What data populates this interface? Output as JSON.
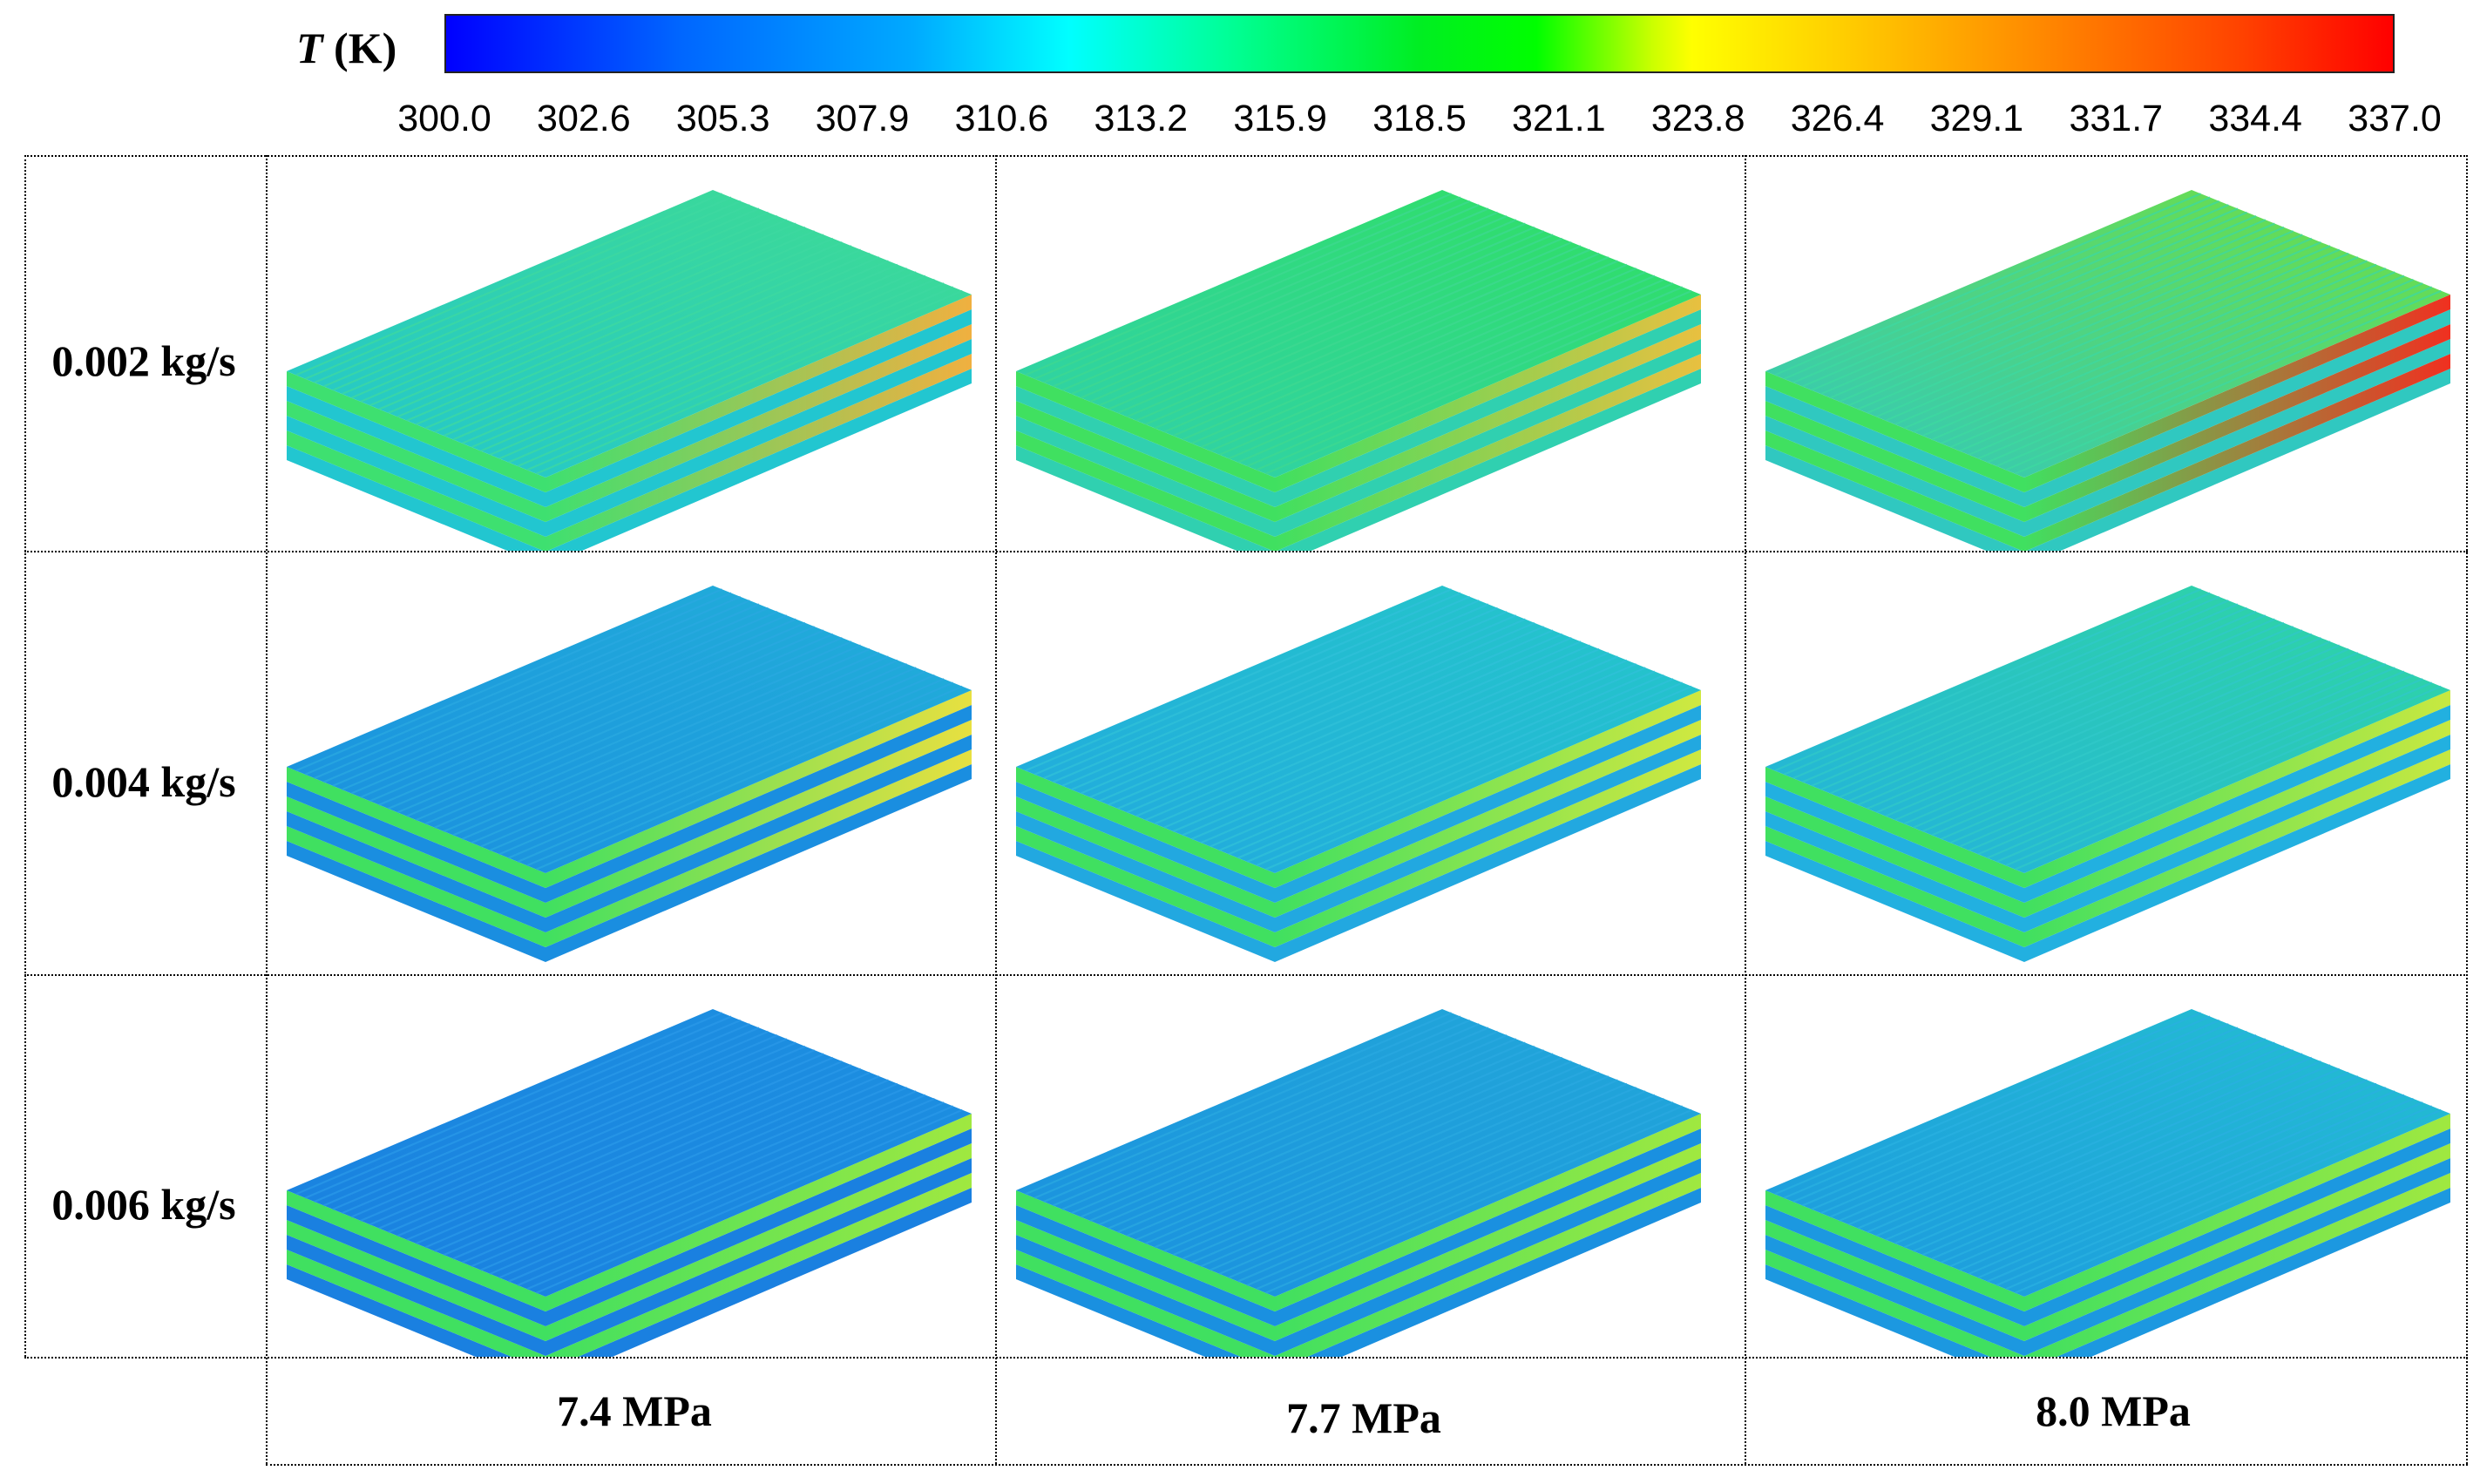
{
  "colorbar": {
    "title_symbol": "T",
    "title_unit": " (K)",
    "ticks": [
      "300.0",
      "302.6",
      "305.3",
      "307.9",
      "310.6",
      "313.2",
      "315.9",
      "318.5",
      "321.1",
      "323.8",
      "326.4",
      "329.1",
      "331.7",
      "334.4",
      "337.0"
    ],
    "colors": [
      "#0000ff",
      "#00aaff",
      "#00ffff",
      "#00ff00",
      "#ffff00",
      "#ff8800",
      "#ff0000"
    ]
  },
  "rows": [
    {
      "label": "0.002 kg/s"
    },
    {
      "label": "0.004 kg/s"
    },
    {
      "label": "0.006 kg/s"
    }
  ],
  "columns": [
    {
      "label": "7.4 MPa"
    },
    {
      "label": "7.7 MPa"
    },
    {
      "label": "8.0 MPa"
    }
  ],
  "panels": [
    {
      "top_color": "#22c6d0",
      "top_color_far": "#3fdc90",
      "stripe_color": "#3ed8a0",
      "layer_color": "#3ee070",
      "edge_hot": "#f0b040"
    },
    {
      "top_color": "#30d0b0",
      "top_color_far": "#30e060",
      "stripe_color": "#3ed890",
      "layer_color": "#40e060",
      "edge_hot": "#e8c040"
    },
    {
      "top_color": "#30c8c0",
      "top_color_far": "#70e040",
      "stripe_color": "#3ed8a0",
      "layer_color": "#40e060",
      "edge_hot": "#f03020"
    },
    {
      "top_color": "#1a8ee0",
      "top_color_far": "#22b0d8",
      "stripe_color": "#2aa8e0",
      "layer_color": "#40e060",
      "edge_hot": "#e8e040"
    },
    {
      "top_color": "#22a8e0",
      "top_color_far": "#24c8c8",
      "stripe_color": "#30c0d8",
      "layer_color": "#40e060",
      "edge_hot": "#d0e840"
    },
    {
      "top_color": "#22b0e0",
      "top_color_far": "#30d8a0",
      "stripe_color": "#30c8c8",
      "layer_color": "#40e060",
      "edge_hot": "#c8e840"
    },
    {
      "top_color": "#1a80e0",
      "top_color_far": "#1c90e0",
      "stripe_color": "#2a98e8",
      "layer_color": "#40e060",
      "edge_hot": "#a0e840"
    },
    {
      "top_color": "#1a90e0",
      "top_color_far": "#22a8d8",
      "stripe_color": "#2aa8e0",
      "layer_color": "#40e060",
      "edge_hot": "#a0e840"
    },
    {
      "top_color": "#1c98e0",
      "top_color_far": "#24c0d0",
      "stripe_color": "#2ab0e0",
      "layer_color": "#40e060",
      "edge_hot": "#a0e840"
    }
  ]
}
